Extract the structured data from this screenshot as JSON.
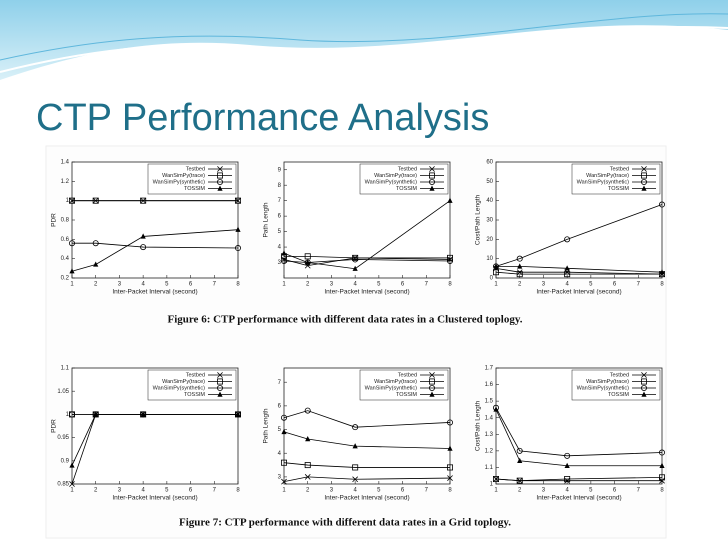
{
  "slide_title": "CTP Performance Analysis",
  "captions": [
    "Figure 6: CTP performance with different data rates in a Clustered toplogy.",
    "Figure 7: CTP performance with different data rates in a Grid toplogy."
  ],
  "chart_data": [
    {
      "type": "line",
      "xlabel": "Inter-Packet Interval (second)",
      "ylabel": "PDR",
      "x": [
        1,
        2,
        4,
        8
      ],
      "xlim": [
        1,
        8
      ],
      "xticks": [
        1,
        2,
        3,
        4,
        5,
        6,
        7,
        8
      ],
      "ylim": [
        0.2,
        1.4
      ],
      "yticks": [
        0.2,
        0.4,
        0.6,
        0.8,
        1,
        1.2,
        1.4
      ],
      "series": [
        {
          "name": "Testbed",
          "color": "#000000",
          "marker": "x",
          "values": [
            1,
            1,
            1,
            1
          ]
        },
        {
          "name": "WanSimPy(trace)",
          "color": "#000000",
          "marker": "square",
          "values": [
            1,
            1,
            1,
            1
          ]
        },
        {
          "name": "WanSimPy(synthetic)",
          "color": "#000000",
          "marker": "circle",
          "values": [
            0.56,
            0.56,
            0.52,
            0.51
          ]
        },
        {
          "name": "TOSSIM",
          "color": "#000000",
          "marker": "triangle",
          "values": [
            0.27,
            0.34,
            0.63,
            0.7
          ]
        }
      ]
    },
    {
      "type": "line",
      "xlabel": "Inter-Packet Interval (second)",
      "ylabel": "Path Length",
      "x": [
        1,
        2,
        4,
        8
      ],
      "xlim": [
        1,
        8
      ],
      "xticks": [
        1,
        2,
        3,
        4,
        5,
        6,
        7,
        8
      ],
      "ylim": [
        2,
        9.5
      ],
      "yticks": [
        3,
        4,
        5,
        6,
        7,
        8,
        9
      ],
      "series": [
        {
          "name": "Testbed",
          "color": "#000000",
          "marker": "x",
          "values": [
            3.2,
            2.8,
            3.3,
            3.2
          ]
        },
        {
          "name": "WanSimPy(trace)",
          "color": "#000000",
          "marker": "square",
          "values": [
            3.4,
            3.4,
            3.3,
            3.3
          ]
        },
        {
          "name": "WanSimPy(synthetic)",
          "color": "#000000",
          "marker": "circle",
          "values": [
            3.1,
            3.0,
            3.2,
            3.1
          ]
        },
        {
          "name": "TOSSIM",
          "color": "#000000",
          "marker": "triangle",
          "values": [
            3.6,
            3.0,
            2.6,
            7.0
          ]
        }
      ]
    },
    {
      "type": "line",
      "xlabel": "Inter-Packet Interval (second)",
      "ylabel": "Cost/Path Length",
      "x": [
        1,
        2,
        4,
        8
      ],
      "xlim": [
        1,
        8
      ],
      "xticks": [
        1,
        2,
        3,
        4,
        5,
        6,
        7,
        8
      ],
      "ylim": [
        0,
        60
      ],
      "yticks": [
        0,
        10,
        20,
        30,
        40,
        50,
        60
      ],
      "series": [
        {
          "name": "Testbed",
          "color": "#000000",
          "marker": "x",
          "values": [
            5,
            3,
            3,
            2
          ]
        },
        {
          "name": "WanSimPy(trace)",
          "color": "#000000",
          "marker": "square",
          "values": [
            3,
            2,
            2,
            2
          ]
        },
        {
          "name": "WanSimPy(synthetic)",
          "color": "#000000",
          "marker": "circle",
          "values": [
            6,
            10,
            20,
            38
          ]
        },
        {
          "name": "TOSSIM",
          "color": "#000000",
          "marker": "triangle",
          "values": [
            6,
            6,
            5,
            3
          ]
        }
      ]
    },
    {
      "type": "line",
      "xlabel": "Inter-Packet Interval (second)",
      "ylabel": "PDR",
      "x": [
        1,
        2,
        4,
        8
      ],
      "xlim": [
        1,
        8
      ],
      "xticks": [
        1,
        2,
        3,
        4,
        5,
        6,
        7,
        8
      ],
      "ylim": [
        0.85,
        1.1
      ],
      "yticks": [
        0.85,
        0.9,
        0.95,
        1,
        1.05,
        1.1
      ],
      "series": [
        {
          "name": "Testbed",
          "color": "#000000",
          "marker": "x",
          "values": [
            0.85,
            1,
            1,
            1
          ]
        },
        {
          "name": "WanSimPy(trace)",
          "color": "#000000",
          "marker": "square",
          "values": [
            1,
            1,
            1,
            1
          ]
        },
        {
          "name": "WanSimPy(synthetic)",
          "color": "#000000",
          "marker": "circle",
          "values": [
            1,
            1,
            1,
            1
          ]
        },
        {
          "name": "TOSSIM",
          "color": "#000000",
          "marker": "triangle",
          "values": [
            0.89,
            1,
            1,
            1
          ]
        }
      ]
    },
    {
      "type": "line",
      "xlabel": "Inter-Packet Interval (second)",
      "ylabel": "Path Length",
      "x": [
        1,
        2,
        4,
        8
      ],
      "xlim": [
        1,
        8
      ],
      "xticks": [
        1,
        2,
        3,
        4,
        5,
        6,
        7,
        8
      ],
      "ylim": [
        2.7,
        7.6
      ],
      "yticks": [
        3,
        4,
        5,
        6,
        7
      ],
      "series": [
        {
          "name": "Testbed",
          "color": "#000000",
          "marker": "x",
          "values": [
            2.8,
            3.0,
            2.9,
            2.95
          ]
        },
        {
          "name": "WanSimPy(trace)",
          "color": "#000000",
          "marker": "square",
          "values": [
            3.6,
            3.5,
            3.4,
            3.4
          ]
        },
        {
          "name": "WanSimPy(synthetic)",
          "color": "#000000",
          "marker": "circle",
          "values": [
            5.5,
            5.8,
            5.1,
            5.3
          ]
        },
        {
          "name": "TOSSIM",
          "color": "#000000",
          "marker": "triangle",
          "values": [
            4.9,
            4.6,
            4.3,
            4.2
          ]
        }
      ]
    },
    {
      "type": "line",
      "xlabel": "Inter-Packet Interval (second)",
      "ylabel": "Cost/Path Length",
      "x": [
        1,
        2,
        4,
        8
      ],
      "xlim": [
        1,
        8
      ],
      "xticks": [
        1,
        2,
        3,
        4,
        5,
        6,
        7,
        8
      ],
      "ylim": [
        1,
        1.7
      ],
      "yticks": [
        1,
        1.1,
        1.2,
        1.3,
        1.4,
        1.5,
        1.6,
        1.7
      ],
      "series": [
        {
          "name": "Testbed",
          "color": "#000000",
          "marker": "x",
          "values": [
            1.03,
            1.02,
            1.02,
            1.02
          ]
        },
        {
          "name": "WanSimPy(trace)",
          "color": "#000000",
          "marker": "square",
          "values": [
            1.03,
            1.02,
            1.03,
            1.04
          ]
        },
        {
          "name": "WanSimPy(synthetic)",
          "color": "#000000",
          "marker": "circle",
          "values": [
            1.46,
            1.2,
            1.17,
            1.19
          ]
        },
        {
          "name": "TOSSIM",
          "color": "#000000",
          "marker": "triangle",
          "values": [
            1.45,
            1.14,
            1.11,
            1.11
          ]
        }
      ]
    }
  ]
}
